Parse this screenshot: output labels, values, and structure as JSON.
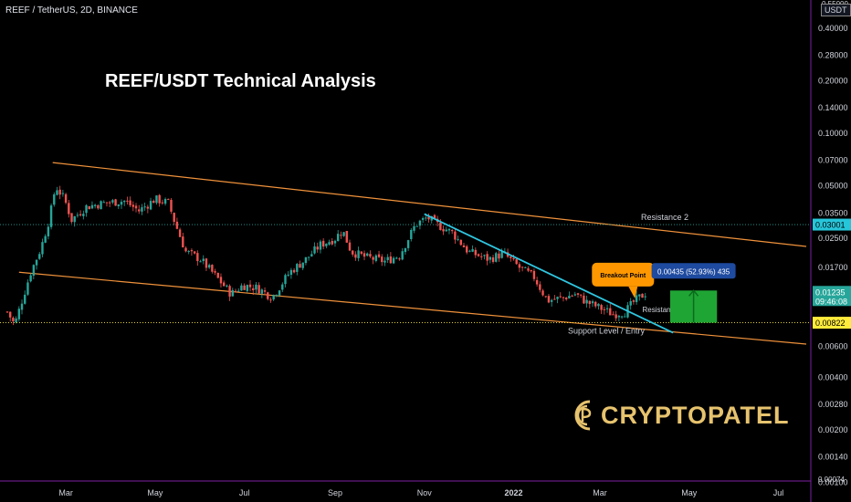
{
  "header": {
    "symbol_line": "REEF / TetherUS, 2D, BINANCE",
    "title": "REEF/USDT Technical Analysis",
    "unit": "USDT"
  },
  "logo": {
    "text": "CRYPTOPATEL",
    "color": "#e7c36e"
  },
  "chart_data": {
    "type": "candlestick",
    "y_scale": "log",
    "ylim": [
      0.00074,
      0.55
    ],
    "y_ticks": [
      0.4,
      0.28,
      0.2,
      0.14,
      0.1,
      0.07,
      0.05,
      0.035,
      0.025,
      0.017,
      0.006,
      0.004,
      0.0028,
      0.002,
      0.0014,
      0.001
    ],
    "y_tick_labels": [
      "0.40000",
      "0.28000",
      "0.20000",
      "0.14000",
      "0.10000",
      "0.07000",
      "0.05000",
      "0.03500",
      "0.02500",
      "0.01700",
      "0.00600",
      "0.00400",
      "0.00280",
      "0.00200",
      "0.00140",
      "0.00100"
    ],
    "y_top_partial_label": "0.55000",
    "y_bottom_partial_label": "0.00074",
    "x_range": [
      "2021-01-20",
      "2022-07-20"
    ],
    "x_ticks": [
      {
        "date": "2021-03-01",
        "label": "Mar"
      },
      {
        "date": "2021-05-01",
        "label": "May"
      },
      {
        "date": "2021-07-01",
        "label": "Jul"
      },
      {
        "date": "2021-09-01",
        "label": "Sep"
      },
      {
        "date": "2021-11-01",
        "label": "Nov"
      },
      {
        "date": "2022-01-01",
        "label": "2022"
      },
      {
        "date": "2022-03-01",
        "label": "Mar"
      },
      {
        "date": "2022-05-01",
        "label": "May"
      },
      {
        "date": "2022-07-01",
        "label": "Jul"
      }
    ],
    "close_path": [
      {
        "date": "2021-01-20",
        "close": 0.0095
      },
      {
        "date": "2021-01-25",
        "close": 0.008
      },
      {
        "date": "2021-01-30",
        "close": 0.011
      },
      {
        "date": "2021-02-05",
        "close": 0.016
      },
      {
        "date": "2021-02-12",
        "close": 0.022
      },
      {
        "date": "2021-02-18",
        "close": 0.033
      },
      {
        "date": "2021-02-22",
        "close": 0.05
      },
      {
        "date": "2021-02-28",
        "close": 0.042
      },
      {
        "date": "2021-03-05",
        "close": 0.032
      },
      {
        "date": "2021-03-15",
        "close": 0.038
      },
      {
        "date": "2021-03-28",
        "close": 0.04
      },
      {
        "date": "2021-04-10",
        "close": 0.041
      },
      {
        "date": "2021-04-20",
        "close": 0.036
      },
      {
        "date": "2021-05-01",
        "close": 0.042
      },
      {
        "date": "2021-05-10",
        "close": 0.04
      },
      {
        "date": "2021-05-15",
        "close": 0.03
      },
      {
        "date": "2021-05-22",
        "close": 0.021
      },
      {
        "date": "2021-06-01",
        "close": 0.019
      },
      {
        "date": "2021-06-12",
        "close": 0.015
      },
      {
        "date": "2021-06-22",
        "close": 0.012
      },
      {
        "date": "2021-06-30",
        "close": 0.0135
      },
      {
        "date": "2021-07-10",
        "close": 0.013
      },
      {
        "date": "2021-07-20",
        "close": 0.0115
      },
      {
        "date": "2021-08-01",
        "close": 0.016
      },
      {
        "date": "2021-08-12",
        "close": 0.019
      },
      {
        "date": "2021-08-22",
        "close": 0.023
      },
      {
        "date": "2021-09-01",
        "close": 0.025
      },
      {
        "date": "2021-09-06",
        "close": 0.028
      },
      {
        "date": "2021-09-12",
        "close": 0.021
      },
      {
        "date": "2021-09-22",
        "close": 0.0195
      },
      {
        "date": "2021-10-05",
        "close": 0.0185
      },
      {
        "date": "2021-10-15",
        "close": 0.02
      },
      {
        "date": "2021-10-26",
        "close": 0.03
      },
      {
        "date": "2021-11-03",
        "close": 0.033
      },
      {
        "date": "2021-11-10",
        "close": 0.03
      },
      {
        "date": "2021-11-20",
        "close": 0.027
      },
      {
        "date": "2021-12-01",
        "close": 0.021
      },
      {
        "date": "2021-12-15",
        "close": 0.019
      },
      {
        "date": "2021-12-25",
        "close": 0.0205
      },
      {
        "date": "2022-01-05",
        "close": 0.017
      },
      {
        "date": "2022-01-15",
        "close": 0.015
      },
      {
        "date": "2022-01-24",
        "close": 0.011
      },
      {
        "date": "2022-02-05",
        "close": 0.0115
      },
      {
        "date": "2022-02-12",
        "close": 0.012
      },
      {
        "date": "2022-02-20",
        "close": 0.0108
      },
      {
        "date": "2022-03-01",
        "close": 0.01
      },
      {
        "date": "2022-03-10",
        "close": 0.0092
      },
      {
        "date": "2022-03-18",
        "close": 0.0095
      },
      {
        "date": "2022-03-25",
        "close": 0.011
      },
      {
        "date": "2022-04-02",
        "close": 0.0123
      }
    ],
    "channel_upper": [
      {
        "date": "2021-02-20",
        "value": 0.068
      },
      {
        "date": "2022-07-20",
        "value": 0.0225
      }
    ],
    "channel_lower": [
      {
        "date": "2021-01-28",
        "value": 0.016
      },
      {
        "date": "2022-07-20",
        "value": 0.0062
      }
    ],
    "trendline": [
      {
        "date": "2021-11-01",
        "value": 0.0345
      },
      {
        "date": "2022-04-20",
        "value": 0.0072
      }
    ],
    "lines": {
      "resistance_2": {
        "value": 0.03001,
        "label": "Resistance 2"
      },
      "support_entry": {
        "value": 0.00822,
        "label": "Support Level / Entry"
      }
    },
    "annotations": {
      "resistance_1": {
        "date": "2022-03-25",
        "value": 0.0098,
        "label": "Resistance 1"
      },
      "breakout": {
        "date": "2022-03-18",
        "value": 0.0155,
        "label": "Breakout Point"
      },
      "projection": {
        "label": "0.00435 (52.93%) 435",
        "date_from": "2022-04-18",
        "date_to": "2022-05-20",
        "low": 0.00822,
        "high": 0.01257
      }
    },
    "price_badges": [
      {
        "label": "0.03001",
        "value": 0.03001,
        "bg": "#26c6da",
        "fg": "#000000"
      },
      {
        "label": "0.01235",
        "value": 0.01235,
        "bg": "#26a69a",
        "fg": "#ffffff",
        "sub": "09:46:08"
      },
      {
        "label": "0.00822",
        "value": 0.00822,
        "bg": "#ffeb3b",
        "fg": "#000000"
      }
    ],
    "colors": {
      "up": "#26a69a",
      "down": "#ef5350",
      "channel": "#f0923b",
      "trendline": "#2fc6e0",
      "resistance2": "#26a69a",
      "support": "#ffeb3b",
      "breakout_box": "#ff9800",
      "projection_box": "#1e4aa0",
      "projection_fill": "#1fa534"
    }
  }
}
